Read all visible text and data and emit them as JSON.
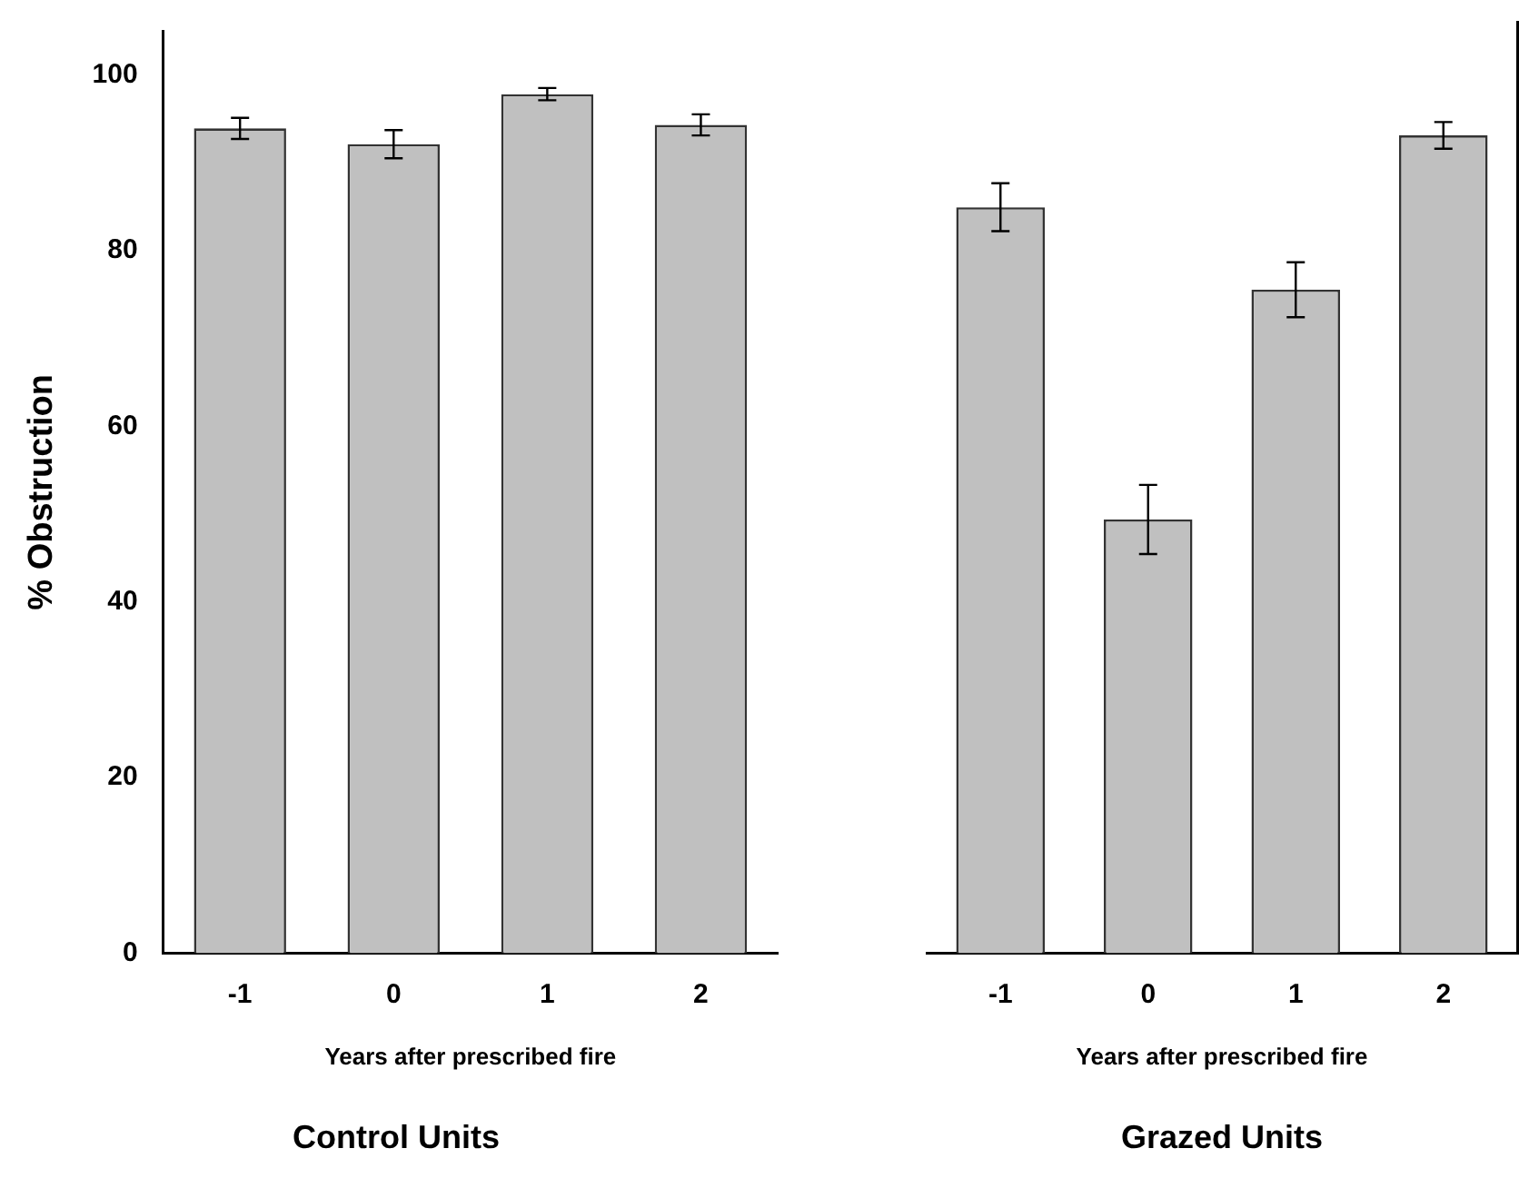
{
  "chart_data": [
    {
      "type": "bar",
      "title": "Control Units",
      "xlabel": "Years after prescribed fire",
      "ylabel": "% Obstruction",
      "categories": [
        "-1",
        "0",
        "1",
        "2"
      ],
      "values": [
        93.9,
        92.1,
        97.8,
        94.3
      ],
      "errors": [
        1.2,
        1.6,
        0.7,
        1.2
      ],
      "color": "#c0c0c0",
      "ylim": [
        0,
        105
      ],
      "yticks": [
        0,
        20,
        40,
        60,
        80,
        100
      ],
      "grid": false,
      "legend": false
    },
    {
      "type": "bar",
      "title": "Grazed Units",
      "xlabel": "Years after prescribed fire",
      "categories": [
        "-1",
        "0",
        "1",
        "2"
      ],
      "values": [
        84.1,
        48.9,
        74.8,
        92.2
      ],
      "errors": [
        2.7,
        3.9,
        3.1,
        1.5
      ],
      "color": "#c0c0c0",
      "ylim": [
        0,
        105
      ],
      "yticks": [
        0,
        20,
        40,
        60,
        80,
        100
      ],
      "grid": false,
      "legend": false,
      "tick_labels": "x"
    }
  ]
}
